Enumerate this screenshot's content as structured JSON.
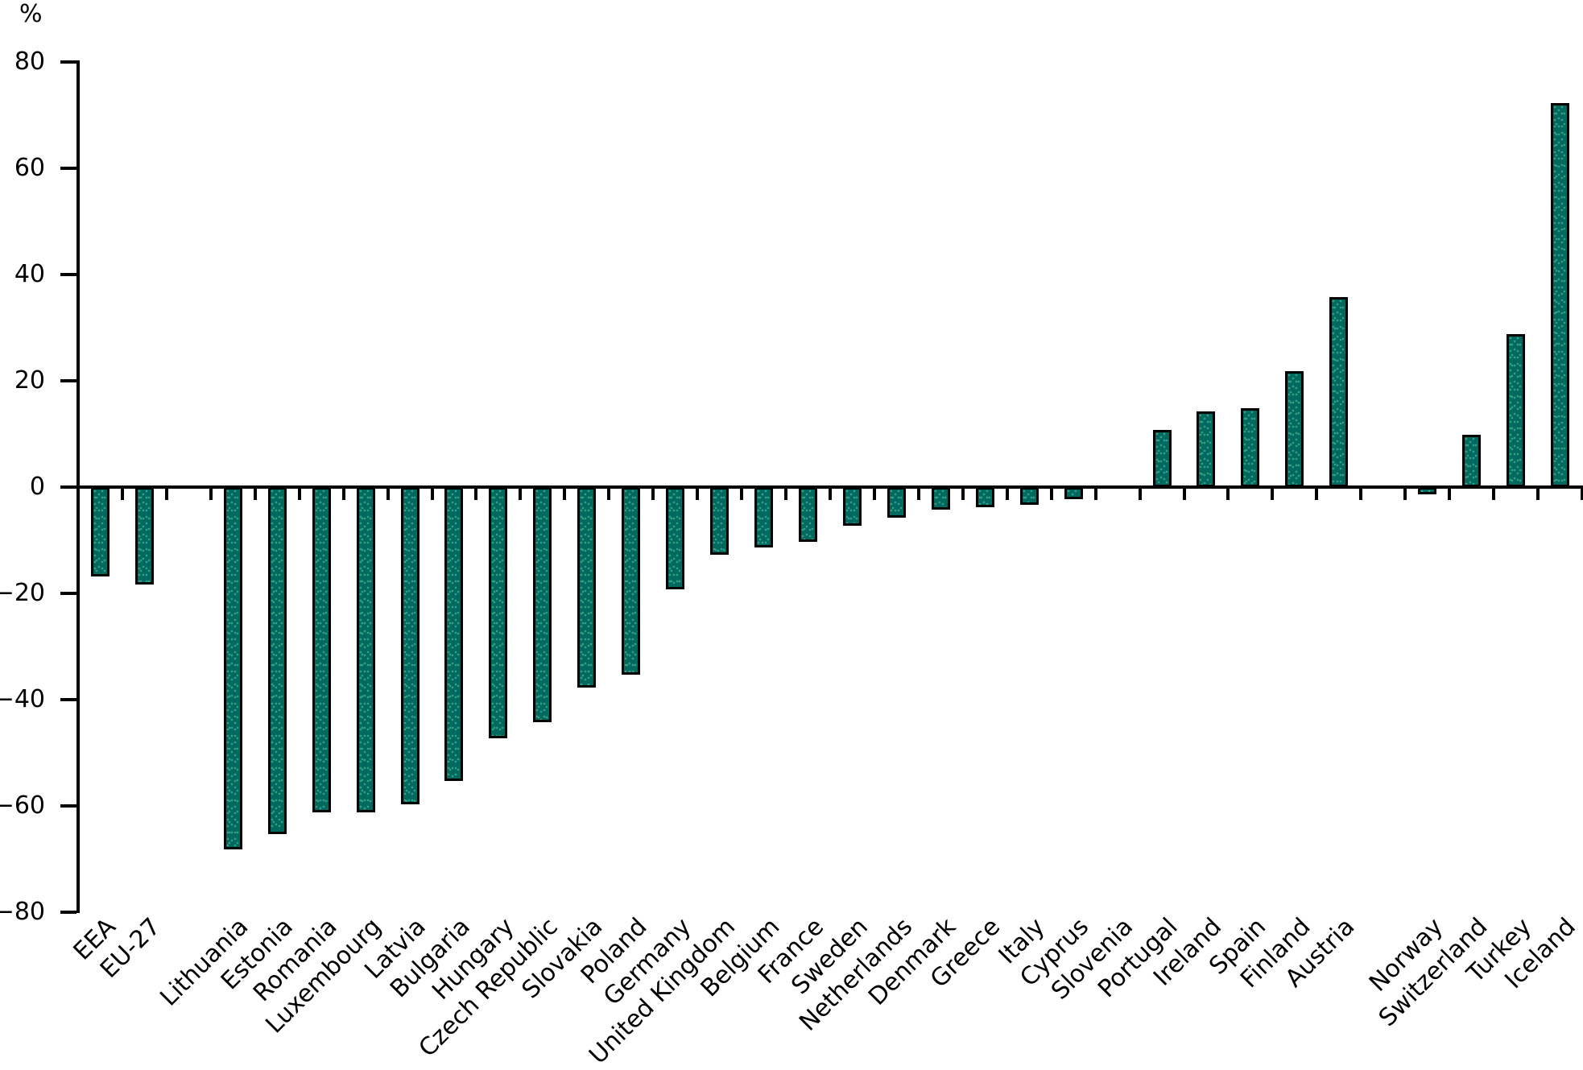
{
  "chart_data": {
    "type": "bar",
    "title": "",
    "ylabel": "%",
    "ylim": [
      -80,
      80
    ],
    "ytick_step": 20,
    "yticks": [
      80,
      60,
      40,
      20,
      0,
      -20,
      -40,
      -60,
      -80
    ],
    "ytick_labels": [
      "80",
      "60",
      "40",
      "20",
      "0",
      "−20",
      "−40",
      "−60",
      "−80"
    ],
    "grid": false,
    "legend": false,
    "bar_fill_color": "#00685e",
    "bar_dot_color": "#2f9f85",
    "bar_outline_color": "#000000",
    "axis_color": "#000000",
    "slots": [
      {
        "label": "EEA",
        "value": -16.5
      },
      {
        "label": "EU-27",
        "value": -18
      },
      {
        "spacer": true
      },
      {
        "label": "Lithuania",
        "value": -68
      },
      {
        "label": "Estonia",
        "value": -65
      },
      {
        "label": "Romania",
        "value": -61
      },
      {
        "label": "Luxembourg",
        "value": -61
      },
      {
        "label": "Latvia",
        "value": -59.5
      },
      {
        "label": "Bulgaria",
        "value": -55
      },
      {
        "label": "Hungary",
        "value": -47
      },
      {
        "label": "Czech Republic",
        "value": -44
      },
      {
        "label": "Slovakia",
        "value": -37.5
      },
      {
        "label": "Poland",
        "value": -35
      },
      {
        "label": "Germany",
        "value": -19
      },
      {
        "label": "United Kingdom",
        "value": -12.5
      },
      {
        "label": "Belgium",
        "value": -11
      },
      {
        "label": "France",
        "value": -10
      },
      {
        "label": "Sweden",
        "value": -7
      },
      {
        "label": "Netherlands",
        "value": -5.5
      },
      {
        "label": "Denmark",
        "value": -4
      },
      {
        "label": "Greece",
        "value": -3.5
      },
      {
        "label": "Italy",
        "value": -3
      },
      {
        "label": "Cyprus",
        "value": -2
      },
      {
        "label": "Slovenia",
        "value": 0
      },
      {
        "label": "Portugal",
        "value": 10.5
      },
      {
        "label": "Ireland",
        "value": 14
      },
      {
        "label": "Spain",
        "value": 14.5
      },
      {
        "label": "Finland",
        "value": 21.5
      },
      {
        "label": "Austria",
        "value": 35.5
      },
      {
        "spacer": true
      },
      {
        "label": "Norway",
        "value": -1
      },
      {
        "label": "Switzerland",
        "value": 9.5
      },
      {
        "label": "Turkey",
        "value": 28.5
      },
      {
        "label": "Iceland",
        "value": 72
      }
    ]
  }
}
